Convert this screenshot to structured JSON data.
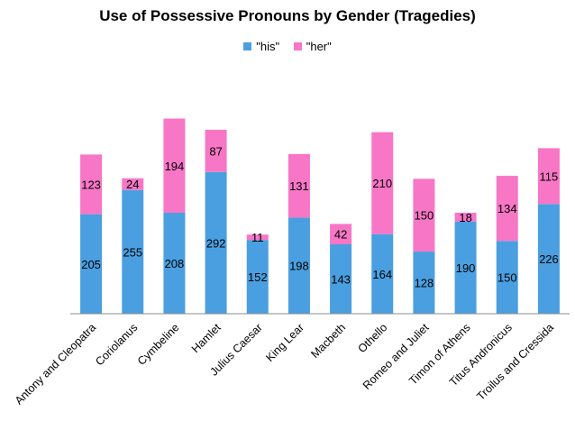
{
  "chart_data": {
    "type": "bar",
    "stacked": true,
    "title": "Use of Possessive Pronouns by Gender (Tragedies)",
    "xlabel": "",
    "ylabel": "",
    "ylim": [
      0,
      450
    ],
    "grid": false,
    "legend_placement": "top-center",
    "categories": [
      "Antony and Cleopatra",
      "Coriolanus",
      "Cymbeline",
      "Hamlet",
      "Julius Caesar",
      "King Lear",
      "Macbeth",
      "Othello",
      "Romeo and Juliet",
      "Timon of Athens",
      "Titus Andronicus",
      "Troilus and Cressida"
    ],
    "series": [
      {
        "name": "\"his\"",
        "color": "#4A9FE0",
        "values": [
          205,
          255,
          208,
          292,
          152,
          198,
          143,
          164,
          128,
          190,
          150,
          226
        ]
      },
      {
        "name": "\"her\"",
        "color": "#F776C6",
        "values": [
          123,
          24,
          194,
          87,
          11,
          131,
          42,
          210,
          150,
          18,
          134,
          115
        ]
      }
    ]
  }
}
